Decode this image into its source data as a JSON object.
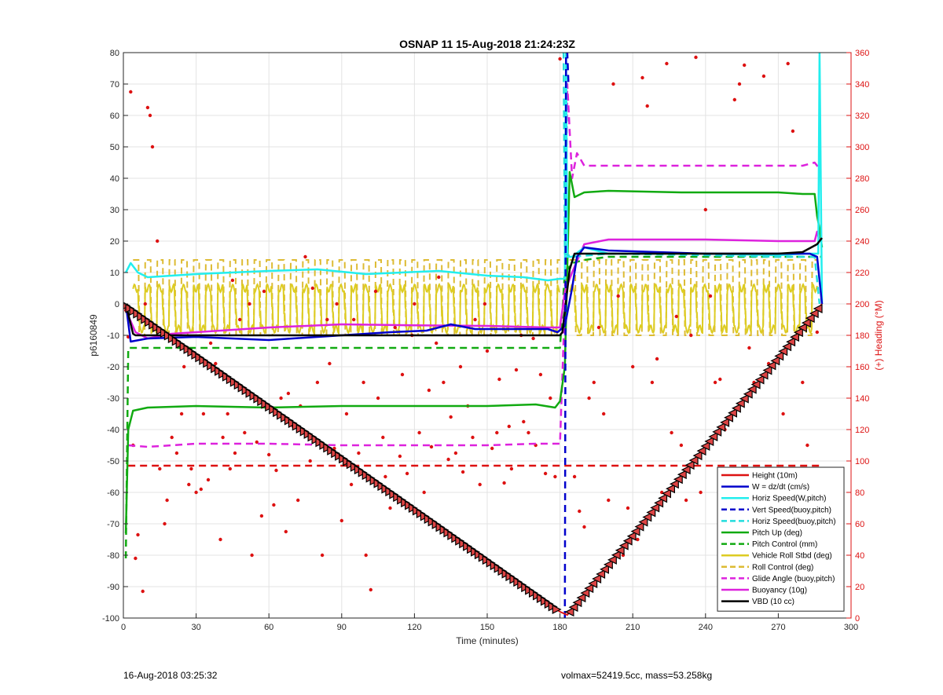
{
  "chart_data": {
    "type": "line",
    "title": "OSNAP 11 15-Aug-2018 21:24:23Z",
    "xlabel": "Time (minutes)",
    "ylabel_left": "p6160849",
    "ylabel_right": "(+) Heading (°M)",
    "xlim": [
      0,
      300
    ],
    "ylim_left": [
      -100,
      80
    ],
    "ylim_right": [
      0,
      360
    ],
    "xticks": [
      "0",
      "30",
      "60",
      "90",
      "120",
      "150",
      "180",
      "210",
      "240",
      "270",
      "300"
    ],
    "yticks_left": [
      "80",
      "70",
      "60",
      "50",
      "40",
      "30",
      "20",
      "10",
      "0",
      "-10",
      "-20",
      "-30",
      "-40",
      "-50",
      "-60",
      "-70",
      "-80",
      "-90",
      "-100"
    ],
    "yticks_right": [
      "360",
      "340",
      "320",
      "300",
      "280",
      "260",
      "240",
      "220",
      "200",
      "180",
      "160",
      "140",
      "120",
      "100",
      "80",
      "60",
      "40",
      "20",
      "0"
    ],
    "grid": true,
    "legend_position": "bottom-right",
    "footer_left": "16-Aug-2018 03:25:32",
    "footer_right": "volmax=52419.5cc, mass=53.258kg",
    "series": [
      {
        "name": "Height (10m)",
        "color": "#dd1111",
        "style": "solid",
        "x": [
          0,
          180,
          183,
          288
        ],
        "y": [
          0,
          -98,
          -99,
          0
        ]
      },
      {
        "name": "W = dz/dt (cm/s)",
        "color": "#0000cc",
        "style": "solid",
        "x": [
          1,
          3,
          10,
          30,
          60,
          90,
          110,
          125,
          135,
          145,
          160,
          175,
          179,
          182,
          185,
          187,
          190,
          200,
          240,
          270,
          283,
          286,
          288
        ],
        "y": [
          0,
          -12,
          -11,
          -10.5,
          -11.5,
          -10,
          -9,
          -8.5,
          -6.5,
          -8,
          -8,
          -8,
          -9,
          -7,
          5,
          15,
          18,
          17,
          16,
          16,
          16,
          15,
          0
        ]
      },
      {
        "name": "Horiz Speed(W,pitch)",
        "color": "#22eeee",
        "style": "solid",
        "x": [
          1,
          3,
          6,
          10,
          30,
          60,
          80,
          100,
          130,
          150,
          165,
          175,
          180,
          182,
          182.5,
          183,
          185,
          190,
          195,
          200,
          240,
          270,
          280,
          285,
          286.5,
          287,
          288
        ],
        "y": [
          10,
          13,
          10,
          8.5,
          9.5,
          10.5,
          11,
          9.5,
          10.5,
          9,
          8.5,
          7.5,
          8,
          8,
          80,
          15,
          15,
          18,
          17,
          16,
          16,
          15.5,
          16,
          16,
          16,
          80,
          0
        ]
      },
      {
        "name": "Vert Speed(buoy,pitch)",
        "color": "#0000cc",
        "style": "dashed",
        "x": [
          182,
          182.5,
          183,
          183.5
        ],
        "y": [
          -100,
          80,
          80,
          70
        ]
      },
      {
        "name": "Horiz Speed(buoy,pitch)",
        "color": "#22dddd",
        "style": "dashed",
        "x": [
          181,
          181.5,
          182,
          185,
          200,
          240,
          270,
          285,
          287
        ],
        "y": [
          80,
          80,
          16,
          15,
          16,
          15.5,
          15,
          15,
          0
        ]
      },
      {
        "name": "Pitch Up (deg)",
        "color": "#11aa11",
        "style": "solid",
        "x": [
          1,
          2,
          4,
          10,
          30,
          60,
          90,
          120,
          150,
          170,
          178,
          180,
          182,
          184,
          186,
          190,
          200,
          230,
          260,
          270,
          280,
          285,
          286,
          287,
          288
        ],
        "y": [
          -73,
          -40,
          -34,
          -33,
          -32.5,
          -33,
          -32.5,
          -32.5,
          -32.5,
          -32,
          -33,
          -31,
          -20,
          42,
          34,
          35.5,
          36,
          35.5,
          35.5,
          35.5,
          35,
          35,
          28,
          24,
          18
        ]
      },
      {
        "name": "Pitch Control (mm)",
        "color": "#11aa11",
        "style": "dashed",
        "x": [
          1,
          2,
          5,
          30,
          60,
          90,
          120,
          150,
          180,
          182,
          185,
          190,
          200,
          240,
          270,
          285,
          288
        ],
        "y": [
          -81,
          -14,
          -14,
          -14,
          -14,
          -14,
          -14,
          -14,
          -14,
          10,
          13,
          14,
          15,
          15,
          15,
          15,
          15
        ]
      },
      {
        "name": "Vehicle Roll Stbd (deg)",
        "color": "#ddcc22",
        "style": "solid",
        "x": [],
        "y": []
      },
      {
        "name": "Roll Control (deg)",
        "color": "#ddbb33",
        "style": "dashed",
        "x": [],
        "y": []
      },
      {
        "name": "Glide Angle (buoy,pitch)",
        "color": "#dd22dd",
        "style": "dashed",
        "x": [
          2,
          10,
          30,
          60,
          90,
          120,
          150,
          170,
          180,
          182,
          183,
          185,
          187,
          190,
          200,
          240,
          270,
          280,
          285,
          287
        ],
        "y": [
          -45,
          -45.5,
          -44.5,
          -44.5,
          -45,
          -45,
          -45,
          -44.5,
          -44.5,
          0,
          70,
          40,
          48,
          44,
          44,
          44,
          44,
          44,
          45,
          43
        ]
      },
      {
        "name": "Buoyancy (10g)",
        "color": "#dd22dd",
        "style": "solid",
        "x": [
          1,
          5,
          10,
          20,
          40,
          60,
          90,
          120,
          150,
          175,
          180,
          182,
          185,
          190,
          200,
          240,
          270,
          280,
          285,
          286,
          287
        ],
        "y": [
          -2,
          -9,
          -11,
          -9.5,
          -8.5,
          -7.5,
          -6.5,
          -6.8,
          -7,
          -7.5,
          -7.5,
          4,
          10,
          19,
          20.5,
          20.5,
          20,
          20,
          20,
          23,
          20
        ]
      },
      {
        "name": "VBD (10 cc)",
        "color": "#000000",
        "style": "solid",
        "x": [
          1,
          4,
          5,
          30,
          60,
          90,
          120,
          150,
          178,
          180,
          181,
          184,
          186,
          200,
          240,
          270,
          280,
          286,
          288
        ],
        "y": [
          0,
          -9.5,
          -10,
          -10,
          -10,
          -10,
          -10,
          -10,
          -10,
          -10,
          -9,
          11,
          16,
          16,
          16,
          16,
          16.5,
          19,
          21
        ]
      },
      {
        "name": "Heading",
        "color": "#dd1111",
        "style": "markers",
        "x": [
          1,
          2,
          3,
          4,
          5,
          6,
          8,
          9,
          10,
          11,
          12,
          14,
          15,
          17,
          18,
          20,
          22,
          24,
          25,
          27,
          28,
          30,
          32,
          33,
          35,
          36,
          38,
          40,
          41,
          43,
          44,
          45,
          46,
          48,
          50,
          52,
          53,
          55,
          57,
          58,
          60,
          62,
          63,
          65,
          67,
          68,
          70,
          72,
          73,
          75,
          77,
          78,
          80,
          82,
          84,
          85,
          87,
          88,
          90,
          92,
          94,
          95,
          97,
          99,
          100,
          102,
          104,
          105,
          107,
          108,
          110,
          112,
          114,
          115,
          117,
          119,
          120,
          122,
          124,
          126,
          127,
          129,
          130,
          132,
          134,
          135,
          137,
          139,
          140,
          142,
          144,
          145,
          147,
          149,
          150,
          152,
          154,
          155,
          157,
          159,
          160,
          162,
          164,
          165,
          167,
          169,
          170,
          172,
          174,
          176,
          178,
          180,
          186,
          188,
          190,
          192,
          194,
          196,
          198,
          200,
          202,
          204,
          206,
          208,
          210,
          212,
          214,
          216,
          218,
          220,
          222,
          224,
          226,
          228,
          230,
          232,
          234,
          236,
          238,
          240,
          242,
          244,
          246,
          248,
          250,
          252,
          254,
          256,
          258,
          260,
          262,
          264,
          266,
          268,
          270,
          272,
          274,
          276,
          278,
          280,
          282,
          284,
          286
        ],
        "y": [
          196,
          179,
          335,
          110,
          38,
          53,
          17,
          200,
          325,
          320,
          300,
          240,
          95,
          60,
          75,
          115,
          105,
          130,
          160,
          85,
          95,
          80,
          82,
          130,
          88,
          175,
          162,
          50,
          115,
          130,
          95,
          215,
          105,
          190,
          118,
          200,
          40,
          112,
          65,
          208,
          104,
          72,
          94,
          140,
          55,
          143,
          122,
          75,
          135,
          230,
          100,
          210,
          150,
          40,
          190,
          162,
          108,
          200,
          62,
          130,
          85,
          190,
          105,
          150,
          40,
          18,
          208,
          140,
          115,
          90,
          70,
          185,
          103,
          155,
          92,
          180,
          200,
          118,
          80,
          145,
          109,
          175,
          217,
          150,
          101,
          128,
          105,
          160,
          93,
          135,
          115,
          190,
          85,
          200,
          170,
          108,
          118,
          152,
          86,
          122,
          95,
          158,
          180,
          125,
          118,
          178,
          110,
          155,
          92,
          140,
          90,
          356,
          90,
          68,
          58,
          140,
          150,
          185,
          130,
          75,
          340,
          205,
          40,
          70,
          160,
          50,
          344,
          326,
          150,
          165,
          80,
          353,
          118,
          192,
          110,
          75,
          180,
          357,
          80,
          260,
          205,
          150,
          152,
          120,
          70,
          330,
          340,
          352,
          172,
          150,
          18,
          345,
          162,
          65,
          45,
          130,
          353,
          310,
          15,
          150,
          110,
          60,
          182
        ]
      }
    ]
  }
}
